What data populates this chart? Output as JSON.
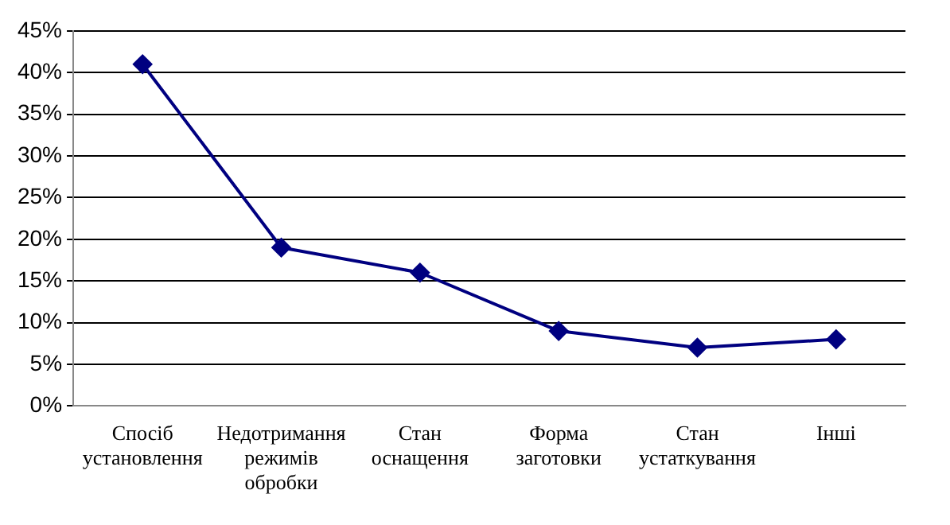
{
  "chart_data": {
    "type": "line",
    "categories": [
      "Спосіб установлення",
      "Недотримання режимів обробки",
      "Стан оснащення",
      "Форма заготовки",
      "Стан устаткування",
      "Інші"
    ],
    "series": [
      {
        "color": "#000080",
        "values": [
          41,
          19,
          16,
          9,
          7,
          8
        ]
      }
    ],
    "ylim": [
      0,
      45
    ],
    "yticks": [
      {
        "value": 0,
        "label": "0%"
      },
      {
        "value": 5,
        "label": "5%"
      },
      {
        "value": 10,
        "label": "10%"
      },
      {
        "value": 15,
        "label": "15%"
      },
      {
        "value": 20,
        "label": "20%"
      },
      {
        "value": 25,
        "label": "25%"
      },
      {
        "value": 30,
        "label": "30%"
      },
      {
        "value": 35,
        "label": "35%"
      },
      {
        "value": 40,
        "label": "40%"
      },
      {
        "value": 45,
        "label": "45%"
      }
    ],
    "grid": "y",
    "legend": false,
    "marker": "diamond",
    "line_style": "solid"
  }
}
